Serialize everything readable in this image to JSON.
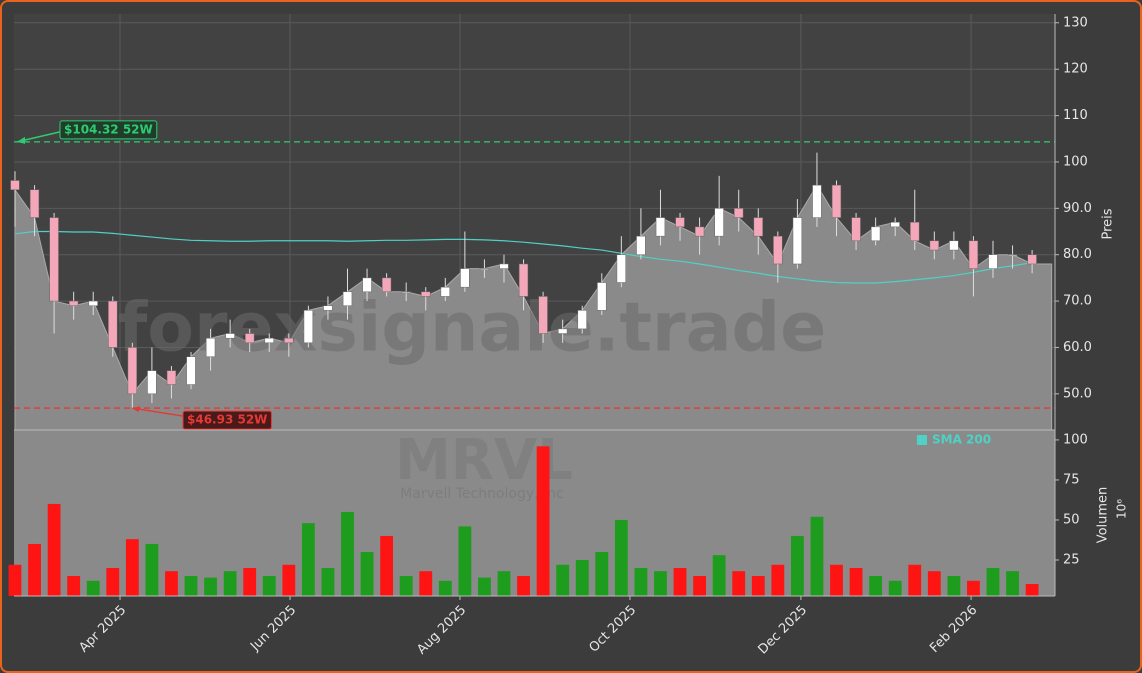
{
  "chart_data": {
    "type": "candlestick",
    "watermark": "forexsignale.trade",
    "symbol": "MRVL",
    "company": "Marvell Technology, Inc",
    "y_label": "Preis",
    "y2_label": "Volumen",
    "y2_exponent_label": "10⁶",
    "categories": [
      null,
      null,
      null,
      null,
      null,
      null,
      null,
      null,
      null,
      null,
      null,
      null,
      null,
      null,
      null,
      null,
      null,
      null,
      null,
      null,
      null,
      null,
      null,
      null,
      null,
      null,
      null,
      null,
      null,
      null,
      null,
      null,
      null,
      null,
      null,
      null,
      null,
      null,
      null,
      null,
      null,
      null,
      null,
      null,
      null,
      null,
      null,
      null,
      null,
      null,
      null,
      null,
      null
    ],
    "xlim": [
      -0.05,
      53.17
    ],
    "xticks": [
      {
        "value": 5.37,
        "label": "Apr 2025"
      },
      {
        "value": 14.06,
        "label": "Jun 2025"
      },
      {
        "value": 22.75,
        "label": "Aug 2025"
      },
      {
        "value": 31.44,
        "label": "Oct 2025"
      },
      {
        "value": 40.18,
        "label": "Dec 2025"
      },
      {
        "value": 48.88,
        "label": "Feb 2026"
      }
    ],
    "ylim": [
      42.2,
      131.9
    ],
    "yticks": [
      {
        "value": 50,
        "label": "50.0"
      },
      {
        "value": 60,
        "label": "60.0"
      },
      {
        "value": 70,
        "label": "70.0"
      },
      {
        "value": 80,
        "label": "80.0"
      },
      {
        "value": 90,
        "label": "90.0"
      },
      100,
      110,
      120,
      130
    ],
    "y2lim": [
      2.5,
      106.2
    ],
    "y2ticks": [
      25,
      50,
      75,
      100
    ],
    "grid": true,
    "open": [
      96,
      94,
      88,
      70,
      69,
      70,
      60,
      50,
      55,
      52,
      58,
      62,
      63,
      61,
      62,
      61,
      68,
      69,
      72,
      75,
      72,
      72,
      71,
      73,
      77,
      77,
      78,
      71,
      63,
      64,
      68,
      74,
      80,
      84,
      88,
      86,
      84,
      90,
      88,
      84,
      78,
      88,
      95,
      88,
      83,
      86,
      87,
      83,
      81,
      83,
      77,
      80,
      80
    ],
    "high": [
      98,
      95,
      89,
      72,
      72,
      71,
      61,
      60,
      56,
      59,
      64,
      66,
      64,
      63,
      63,
      69,
      71,
      77,
      77,
      76,
      74,
      73,
      75,
      85,
      79,
      80,
      79,
      72,
      66,
      69,
      76,
      84,
      90,
      94,
      89,
      88,
      97,
      94,
      90,
      85,
      92,
      102,
      96,
      89,
      88,
      88,
      94,
      85,
      85,
      84,
      83,
      82,
      81
    ],
    "low": [
      86,
      84,
      63,
      66,
      67,
      58,
      47,
      48,
      49,
      51,
      55,
      60,
      59,
      59,
      58,
      60,
      66,
      66,
      70,
      71,
      70,
      68,
      70,
      72,
      75,
      74,
      68,
      61,
      61,
      63,
      67,
      73,
      79,
      82,
      83,
      80,
      82,
      85,
      80,
      74,
      77,
      86,
      84,
      81,
      82,
      84,
      81,
      79,
      79,
      71,
      75,
      77,
      76
    ],
    "close": [
      94,
      88,
      70,
      69,
      70,
      60,
      50,
      55,
      52,
      58,
      62,
      63,
      61,
      62,
      61,
      68,
      69,
      72,
      75,
      72,
      72,
      71,
      73,
      77,
      77,
      78,
      71,
      63,
      64,
      68,
      74,
      80,
      84,
      88,
      86,
      84,
      90,
      88,
      84,
      78,
      88,
      95,
      88,
      83,
      86,
      87,
      83,
      81,
      83,
      77,
      80,
      80,
      78
    ],
    "volume": [
      22,
      35,
      60,
      15,
      12,
      20,
      38,
      35,
      18,
      15,
      14,
      18,
      20,
      15,
      22,
      48,
      20,
      55,
      30,
      40,
      15,
      18,
      12,
      46,
      14,
      18,
      15,
      96,
      22,
      25,
      30,
      50,
      20,
      18,
      20,
      15,
      28,
      18,
      15,
      22,
      40,
      52,
      22,
      20,
      15,
      12,
      22,
      18,
      15,
      12,
      20,
      18,
      10
    ],
    "sma": {
      "name": "SMA 200",
      "color": "#4fd1c5",
      "values": [
        84.5,
        85,
        85,
        84.9,
        84.9,
        84.6,
        84.2,
        83.8,
        83.4,
        83.1,
        83,
        82.9,
        82.9,
        83,
        83,
        83,
        83,
        82.9,
        83,
        83.1,
        83.1,
        83.2,
        83.3,
        83.3,
        83.2,
        83,
        82.7,
        82.3,
        81.9,
        81.4,
        81,
        80.3,
        79.6,
        79,
        78.6,
        78,
        77.3,
        76.6,
        76,
        75.3,
        74.8,
        74.3,
        74,
        73.9,
        73.9,
        74.2,
        74.6,
        75,
        75.5,
        76.2,
        77,
        77.6,
        78.3
      ]
    },
    "up_color": "#ffffff",
    "down_color": "#f4a7b9",
    "volume_up_color": "#1e9c1e",
    "volume_down_color": "#ff1414",
    "annotations": [
      {
        "text": "$104.32 52W",
        "value": 104.32,
        "color": "#2ecc71"
      },
      {
        "text": "$46.93 52W",
        "value": 46.93,
        "color": "#e53935"
      }
    ]
  }
}
